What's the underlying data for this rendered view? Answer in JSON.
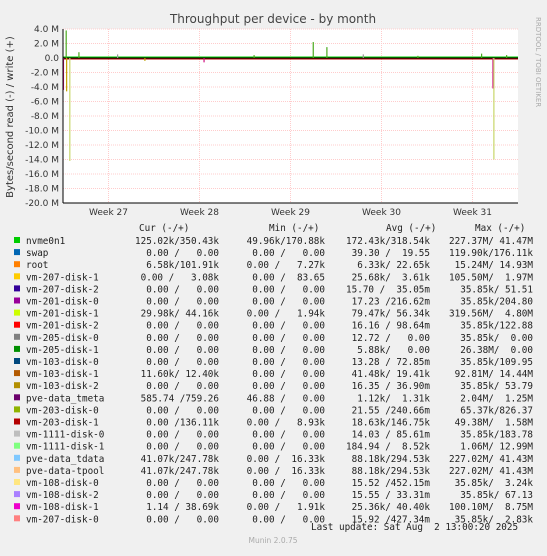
{
  "chart_data": {
    "type": "line",
    "title": "Throughput per device - by month",
    "ylabel": "Bytes/second read (-) / write (+)",
    "ylim": [
      -20.0,
      4.0
    ],
    "y_ticks": [
      "4.0 M",
      "2.0 M",
      "0.0",
      "-2.0 M",
      "-4.0 M",
      "-6.0 M",
      "-8.0 M",
      "-10.0 M",
      "-12.0 M",
      "-14.0 M",
      "-16.0 M",
      "-18.0 M",
      "-20.0 M"
    ],
    "y_tick_values": [
      4,
      2,
      0,
      -2,
      -4,
      -6,
      -8,
      -10,
      -12,
      -14,
      -16,
      -18,
      -20
    ],
    "x_ticks": [
      "Week 27",
      "Week 28",
      "Week 29",
      "Week 30",
      "Week 31"
    ],
    "x_tick_values": [
      0.1,
      0.3,
      0.5,
      0.7,
      0.9
    ],
    "side_label": "RRDTOOL / TOBI OETIKER",
    "header": {
      "cur": "Cur (-/+)",
      "min": "Min (-/+)",
      "avg": "Avg (-/+)",
      "max": "Max (-/+)"
    },
    "spikes": [
      {
        "x": 0.007,
        "y": 3.8,
        "color": "#4aaa1e"
      },
      {
        "x": 0.015,
        "y": -14.2,
        "color": "#c8d66a"
      },
      {
        "x": 0.008,
        "y": -4.6,
        "color": "#c0a000"
      },
      {
        "x": 0.001,
        "y": -4.4,
        "color": "#d01080"
      },
      {
        "x": 0.035,
        "y": 0.8,
        "color": "#4aaa1e"
      },
      {
        "x": 0.12,
        "y": 0.5,
        "color": "#999999"
      },
      {
        "x": 0.18,
        "y": -0.4,
        "color": "#c0a000"
      },
      {
        "x": 0.31,
        "y": -0.6,
        "color": "#d01080"
      },
      {
        "x": 0.42,
        "y": 0.4,
        "color": "#4aaa1e"
      },
      {
        "x": 0.55,
        "y": 2.2,
        "color": "#4aaa1e"
      },
      {
        "x": 0.58,
        "y": 1.5,
        "color": "#4aaa1e"
      },
      {
        "x": 0.66,
        "y": 0.5,
        "color": "#999999"
      },
      {
        "x": 0.78,
        "y": 0.3,
        "color": "#4aaa1e"
      },
      {
        "x": 0.92,
        "y": 0.6,
        "color": "#4aaa1e"
      },
      {
        "x": 0.945,
        "y": -4.2,
        "color": "#d01080"
      },
      {
        "x": 0.947,
        "y": -14.0,
        "color": "#c8d66a"
      },
      {
        "x": 0.975,
        "y": 0.4,
        "color": "#4aaa1e"
      }
    ],
    "series": [
      {
        "name": "nvme0n1",
        "color": "#00cc00",
        "cur": "125.02k/350.43k",
        "min": "49.96k/170.88k",
        "avg": "172.43k/318.54k",
        "max": "227.37M/ 41.47M"
      },
      {
        "name": "swap",
        "color": "#0066b3",
        "cur": "0.00 /   0.00",
        "min": "0.00 /   0.00",
        "avg": "39.30 /  19.55",
        "max": "119.90k/176.11k"
      },
      {
        "name": "root",
        "color": "#ff8000",
        "cur": "6.58k/101.91k",
        "min": "0.00 /   7.27k",
        "avg": "6.33k/ 22.65k",
        "max": "15.24M/ 14.93M"
      },
      {
        "name": "vm-207-disk-1",
        "color": "#ffcc00",
        "cur": "0.00 /   3.08k",
        "min": "0.00 /  83.65",
        "avg": "25.68k/  3.61k",
        "max": "105.50M/  1.97M"
      },
      {
        "name": "vm-207-disk-2",
        "color": "#330099",
        "cur": "0.00 /   0.00",
        "min": "0.00 /   0.00",
        "avg": "15.70 /  35.05m",
        "max": "35.85k/ 51.51"
      },
      {
        "name": "vm-201-disk-0",
        "color": "#990099",
        "cur": "0.00 /   0.00",
        "min": "0.00 /   0.00",
        "avg": "17.23 /216.62m",
        "max": "35.85k/204.80"
      },
      {
        "name": "vm-201-disk-1",
        "color": "#ccff00",
        "cur": "29.98k/ 44.16k",
        "min": "0.00 /   1.94k",
        "avg": "79.47k/ 56.34k",
        "max": "319.56M/  4.80M"
      },
      {
        "name": "vm-201-disk-2",
        "color": "#ff0000",
        "cur": "0.00 /   0.00",
        "min": "0.00 /   0.00",
        "avg": "16.16 / 98.64m",
        "max": "35.85k/122.88"
      },
      {
        "name": "vm-205-disk-0",
        "color": "#808080",
        "cur": "0.00 /   0.00",
        "min": "0.00 /   0.00",
        "avg": "12.72 /   0.00",
        "max": "35.85k/  0.00"
      },
      {
        "name": "vm-205-disk-1",
        "color": "#008f00",
        "cur": "0.00 /   0.00",
        "min": "0.00 /   0.00",
        "avg": "5.88k/   0.00",
        "max": "26.38M/  0.00"
      },
      {
        "name": "vm-103-disk-0",
        "color": "#00487d",
        "cur": "0.00 /   0.00",
        "min": "0.00 /   0.00",
        "avg": "13.28 / 72.85m",
        "max": "35.85k/109.95"
      },
      {
        "name": "vm-103-disk-1",
        "color": "#b35a00",
        "cur": "11.60k/ 12.40k",
        "min": "0.00 /   0.00",
        "avg": "41.48k/ 19.41k",
        "max": "92.81M/ 14.44M"
      },
      {
        "name": "vm-103-disk-2",
        "color": "#b38f00",
        "cur": "0.00 /   0.00",
        "min": "0.00 /   0.00",
        "avg": "16.35 / 36.90m",
        "max": "35.85k/ 53.79"
      },
      {
        "name": "pve-data_tmeta",
        "color": "#6b006b",
        "cur": "585.74 /759.26",
        "min": "46.88 /   0.00",
        "avg": "1.12k/  1.31k",
        "max": "2.04M/  1.25M"
      },
      {
        "name": "vm-203-disk-0",
        "color": "#8fb300",
        "cur": "0.00 /   0.00",
        "min": "0.00 /   0.00",
        "avg": "21.55 /240.66m",
        "max": "65.37k/826.37"
      },
      {
        "name": "vm-203-disk-1",
        "color": "#b30000",
        "cur": "0.00 /136.11k",
        "min": "0.00 /   8.93k",
        "avg": "18.63k/146.75k",
        "max": "49.38M/  1.58M"
      },
      {
        "name": "vm-1111-disk-0",
        "color": "#bebebe",
        "cur": "0.00 /   0.00",
        "min": "0.00 /   0.00",
        "avg": "14.03 / 85.61m",
        "max": "35.85k/183.78"
      },
      {
        "name": "vm-1111-disk-1",
        "color": "#80ff80",
        "cur": "0.00 /   0.00",
        "min": "0.00 /   0.00",
        "avg": "184.94 /  8.52k",
        "max": "1.06M/ 12.99M"
      },
      {
        "name": "pve-data_tdata",
        "color": "#80c9ff",
        "cur": "41.07k/247.78k",
        "min": "0.00 /  16.33k",
        "avg": "88.18k/294.53k",
        "max": "227.02M/ 41.43M"
      },
      {
        "name": "pve-data-tpool",
        "color": "#ffc080",
        "cur": "41.07k/247.78k",
        "min": "0.00 /  16.33k",
        "avg": "88.18k/294.53k",
        "max": "227.02M/ 41.43M"
      },
      {
        "name": "vm-108-disk-0",
        "color": "#ffe680",
        "cur": "0.00 /   0.00",
        "min": "0.00 /   0.00",
        "avg": "15.52 /452.15m",
        "max": "35.85k/  3.24k"
      },
      {
        "name": "vm-108-disk-2",
        "color": "#aa80ff",
        "cur": "0.00 /   0.00",
        "min": "0.00 /   0.00",
        "avg": "15.55 / 33.31m",
        "max": "35.85k/ 67.13"
      },
      {
        "name": "vm-108-disk-1",
        "color": "#ee00cc",
        "cur": "1.14 / 38.69k",
        "min": "0.00 /   1.91k",
        "avg": "25.36k/ 40.40k",
        "max": "100.10M/  8.75M"
      },
      {
        "name": "vm-207-disk-0",
        "color": "#ff8080",
        "cur": "0.00 /   0.00",
        "min": "0.00 /   0.00",
        "avg": "15.92 /427.34m",
        "max": "35.85k/  2.83k"
      }
    ],
    "last_update": "Last update: Sat Aug  2 13:00:20 2025",
    "footer": "Munin 2.0.75"
  }
}
